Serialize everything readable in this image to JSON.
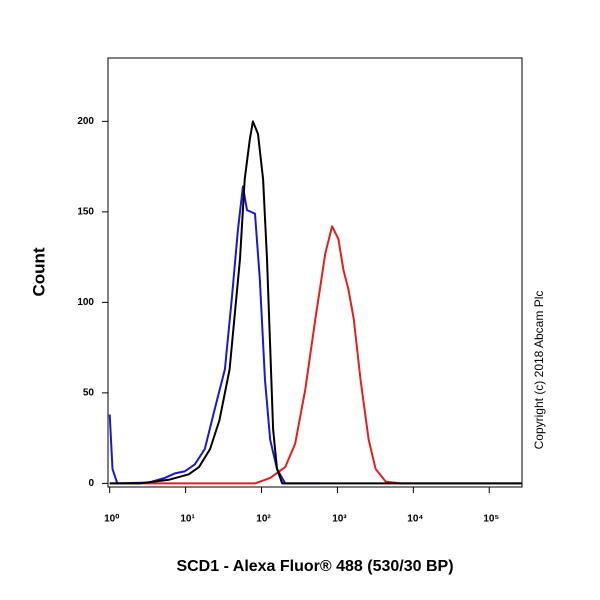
{
  "chart_data": {
    "type": "line",
    "x_label": "SCD1 - Alexa Fluor® 488 (530/30 BP)",
    "y_label": "Count",
    "annotation": "Copyright (c) 2018 Abcam Plc",
    "xscale": "log",
    "xlim": [
      0.95,
      270000
    ],
    "ylim": [
      -2,
      235
    ],
    "xticks": [
      {
        "value": 1,
        "label": "10⁰"
      },
      {
        "value": 10,
        "label": "10¹"
      },
      {
        "value": 100,
        "label": "10²"
      },
      {
        "value": 1000,
        "label": "10³"
      },
      {
        "value": 10000,
        "label": "10⁴"
      },
      {
        "value": 100000,
        "label": "10⁵"
      }
    ],
    "yticks": [
      0,
      50,
      100,
      150,
      200
    ],
    "series": [
      {
        "color": "#000000",
        "x": [
          1,
          2.5,
          6,
          11,
          15,
          21,
          28,
          38,
          52,
          60,
          70,
          77,
          90,
          105,
          118,
          130,
          142,
          160,
          187,
          320,
          270000
        ],
        "values": [
          0,
          0,
          2,
          5,
          9,
          19,
          35,
          63,
          124,
          168,
          190,
          200,
          193,
          168,
          124,
          75,
          30,
          8,
          0,
          0,
          0
        ]
      },
      {
        "color": "#1a1acc",
        "x": [
          1,
          1.09,
          1.26,
          3.3,
          5.3,
          7.2,
          9.7,
          13.2,
          17.9,
          24.2,
          32.9,
          40.6,
          48.8,
          56.9,
          64.4,
          72.6,
          82,
          95,
          111,
          130,
          160,
          205,
          590
        ],
        "values": [
          38,
          8,
          0,
          0.5,
          3,
          5.5,
          6.6,
          10.5,
          19,
          41,
          63,
          102,
          140,
          164,
          151,
          150,
          149,
          113,
          57,
          24,
          8,
          0,
          0
        ]
      },
      {
        "color": "#e02020",
        "x": [
          1,
          82,
          130,
          205,
          278,
          377,
          512,
          693,
          850,
          1030,
          1200,
          1400,
          1640,
          2020,
          2580,
          3180,
          4320,
          6830,
          270000
        ],
        "values": [
          0,
          0,
          3,
          9,
          22,
          52,
          91,
          127,
          142,
          135,
          118,
          107,
          91,
          57,
          24,
          8,
          1,
          0,
          0
        ]
      }
    ]
  }
}
